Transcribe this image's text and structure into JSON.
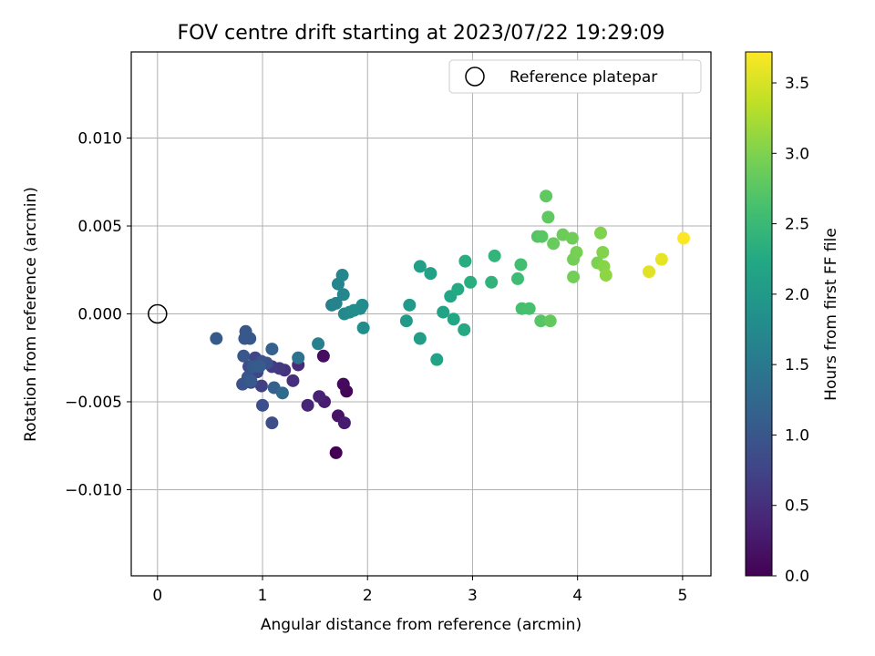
{
  "chart_data": {
    "type": "scatter",
    "title": "FOV centre drift starting at 2023/07/22 19:29:09",
    "xlabel": "Angular distance from reference (arcmin)",
    "ylabel": "Rotation from reference (arcmin)",
    "xlim": [
      -0.25,
      5.27
    ],
    "ylim": [
      -0.0149,
      0.0149
    ],
    "xticks": [
      0,
      1,
      2,
      3,
      4,
      5
    ],
    "xtick_labels": [
      "0",
      "1",
      "2",
      "3",
      "4",
      "5"
    ],
    "yticks": [
      -0.01,
      -0.005,
      0,
      0.005,
      0.01
    ],
    "ytick_labels": [
      "−0.010",
      "−0.005",
      "0.000",
      "0.005",
      "0.010"
    ],
    "grid": true,
    "legend": {
      "position": "top-right",
      "entries": [
        {
          "label": "Reference platepar",
          "marker": "open-circle"
        }
      ]
    },
    "reference_point": {
      "x": 0,
      "y": 0
    },
    "colorbar": {
      "label": "Hours from first FF file",
      "colormap": "viridis",
      "range": [
        0,
        3.72
      ],
      "ticks": [
        0,
        0.5,
        1,
        1.5,
        2,
        2.5,
        3,
        3.5
      ],
      "tick_labels": [
        "0.0",
        "0.5",
        "1.0",
        "1.5",
        "2.0",
        "2.5",
        "3.0",
        "3.5"
      ]
    },
    "points": [
      {
        "x": 1.7,
        "y": -0.0079,
        "c": 0.0
      },
      {
        "x": 1.8,
        "y": -0.0044,
        "c": 0.05
      },
      {
        "x": 1.77,
        "y": -0.004,
        "c": 0.1
      },
      {
        "x": 1.58,
        "y": -0.0024,
        "c": 0.12
      },
      {
        "x": 1.72,
        "y": -0.0058,
        "c": 0.2
      },
      {
        "x": 1.78,
        "y": -0.0062,
        "c": 0.28
      },
      {
        "x": 1.59,
        "y": -0.005,
        "c": 0.3
      },
      {
        "x": 1.54,
        "y": -0.0047,
        "c": 0.35
      },
      {
        "x": 1.43,
        "y": -0.0052,
        "c": 0.4
      },
      {
        "x": 1.34,
        "y": -0.0029,
        "c": 0.45
      },
      {
        "x": 1.29,
        "y": -0.0038,
        "c": 0.5
      },
      {
        "x": 1.21,
        "y": -0.0032,
        "c": 0.55
      },
      {
        "x": 1.16,
        "y": -0.0031,
        "c": 0.6
      },
      {
        "x": 1.09,
        "y": -0.003,
        "c": 0.65
      },
      {
        "x": 0.99,
        "y": -0.0041,
        "c": 0.7
      },
      {
        "x": 0.95,
        "y": -0.0033,
        "c": 0.75
      },
      {
        "x": 0.93,
        "y": -0.0025,
        "c": 0.78
      },
      {
        "x": 0.89,
        "y": -0.0039,
        "c": 0.82
      },
      {
        "x": 0.87,
        "y": -0.003,
        "c": 0.85
      },
      {
        "x": 1.09,
        "y": -0.0062,
        "c": 0.88
      },
      {
        "x": 1.0,
        "y": -0.0052,
        "c": 0.9
      },
      {
        "x": 1.04,
        "y": -0.0028,
        "c": 0.92
      },
      {
        "x": 0.99,
        "y": -0.0027,
        "c": 0.95
      },
      {
        "x": 0.81,
        "y": -0.004,
        "c": 0.95
      },
      {
        "x": 0.86,
        "y": -0.0036,
        "c": 0.98
      },
      {
        "x": 0.82,
        "y": -0.0024,
        "c": 1.0
      },
      {
        "x": 0.83,
        "y": -0.0014,
        "c": 1.0
      },
      {
        "x": 0.88,
        "y": -0.0014,
        "c": 1.02
      },
      {
        "x": 0.84,
        "y": -0.001,
        "c": 1.02
      },
      {
        "x": 0.89,
        "y": -0.0038,
        "c": 1.05
      },
      {
        "x": 0.91,
        "y": -0.003,
        "c": 1.05
      },
      {
        "x": 0.97,
        "y": -0.003,
        "c": 1.08
      },
      {
        "x": 0.56,
        "y": -0.0014,
        "c": 1.05
      },
      {
        "x": 1.11,
        "y": -0.0042,
        "c": 1.15
      },
      {
        "x": 1.09,
        "y": -0.002,
        "c": 1.15
      },
      {
        "x": 1.19,
        "y": -0.0045,
        "c": 1.3
      },
      {
        "x": 1.34,
        "y": -0.0025,
        "c": 1.4
      },
      {
        "x": 1.53,
        "y": -0.0017,
        "c": 1.6
      },
      {
        "x": 1.66,
        "y": 0.0005,
        "c": 1.62
      },
      {
        "x": 1.7,
        "y": 0.0006,
        "c": 1.65
      },
      {
        "x": 1.72,
        "y": 0.0017,
        "c": 1.68
      },
      {
        "x": 1.76,
        "y": 0.0022,
        "c": 1.7
      },
      {
        "x": 1.77,
        "y": 0.0011,
        "c": 1.7
      },
      {
        "x": 1.78,
        "y": 0.0,
        "c": 1.72
      },
      {
        "x": 1.83,
        "y": 0.0001,
        "c": 1.75
      },
      {
        "x": 1.87,
        "y": 0.0002,
        "c": 1.78
      },
      {
        "x": 1.93,
        "y": 0.0003,
        "c": 1.78
      },
      {
        "x": 1.95,
        "y": 0.0005,
        "c": 1.8
      },
      {
        "x": 1.96,
        "y": -0.0008,
        "c": 1.82
      },
      {
        "x": 2.37,
        "y": -0.0004,
        "c": 2.0
      },
      {
        "x": 2.4,
        "y": 0.0005,
        "c": 2.0
      },
      {
        "x": 2.5,
        "y": -0.0014,
        "c": 2.05
      },
      {
        "x": 2.5,
        "y": 0.0027,
        "c": 2.1
      },
      {
        "x": 2.6,
        "y": 0.0023,
        "c": 2.12
      },
      {
        "x": 2.66,
        "y": -0.0026,
        "c": 2.15
      },
      {
        "x": 2.72,
        "y": 0.0001,
        "c": 2.15
      },
      {
        "x": 2.79,
        "y": 0.001,
        "c": 2.2
      },
      {
        "x": 2.82,
        "y": -0.0003,
        "c": 2.22
      },
      {
        "x": 2.86,
        "y": 0.0014,
        "c": 2.25
      },
      {
        "x": 2.92,
        "y": -0.0009,
        "c": 2.25
      },
      {
        "x": 2.93,
        "y": 0.003,
        "c": 2.3
      },
      {
        "x": 2.98,
        "y": 0.0018,
        "c": 2.32
      },
      {
        "x": 3.18,
        "y": 0.0018,
        "c": 2.4
      },
      {
        "x": 3.21,
        "y": 0.0033,
        "c": 2.42
      },
      {
        "x": 3.43,
        "y": 0.002,
        "c": 2.55
      },
      {
        "x": 3.46,
        "y": 0.0028,
        "c": 2.58
      },
      {
        "x": 3.47,
        "y": 0.0003,
        "c": 2.6
      },
      {
        "x": 3.54,
        "y": 0.0003,
        "c": 2.62
      },
      {
        "x": 3.62,
        "y": 0.0044,
        "c": 2.7
      },
      {
        "x": 3.65,
        "y": -0.0004,
        "c": 2.72
      },
      {
        "x": 3.66,
        "y": 0.0044,
        "c": 2.75
      },
      {
        "x": 3.7,
        "y": 0.0067,
        "c": 2.78
      },
      {
        "x": 3.72,
        "y": 0.0055,
        "c": 2.8
      },
      {
        "x": 3.74,
        "y": -0.0004,
        "c": 2.82
      },
      {
        "x": 3.77,
        "y": 0.004,
        "c": 2.85
      },
      {
        "x": 3.86,
        "y": 0.0045,
        "c": 2.88
      },
      {
        "x": 3.95,
        "y": 0.0043,
        "c": 2.9
      },
      {
        "x": 3.96,
        "y": 0.0031,
        "c": 2.92
      },
      {
        "x": 3.96,
        "y": 0.0021,
        "c": 2.92
      },
      {
        "x": 3.99,
        "y": 0.0035,
        "c": 2.95
      },
      {
        "x": 4.19,
        "y": 0.0029,
        "c": 2.98
      },
      {
        "x": 4.22,
        "y": 0.0046,
        "c": 3.0
      },
      {
        "x": 4.24,
        "y": 0.0035,
        "c": 3.02
      },
      {
        "x": 4.25,
        "y": 0.0027,
        "c": 3.05
      },
      {
        "x": 4.27,
        "y": 0.0022,
        "c": 3.08
      },
      {
        "x": 4.68,
        "y": 0.0024,
        "c": 3.55
      },
      {
        "x": 4.8,
        "y": 0.0031,
        "c": 3.58
      },
      {
        "x": 5.01,
        "y": 0.0043,
        "c": 3.72
      }
    ]
  }
}
